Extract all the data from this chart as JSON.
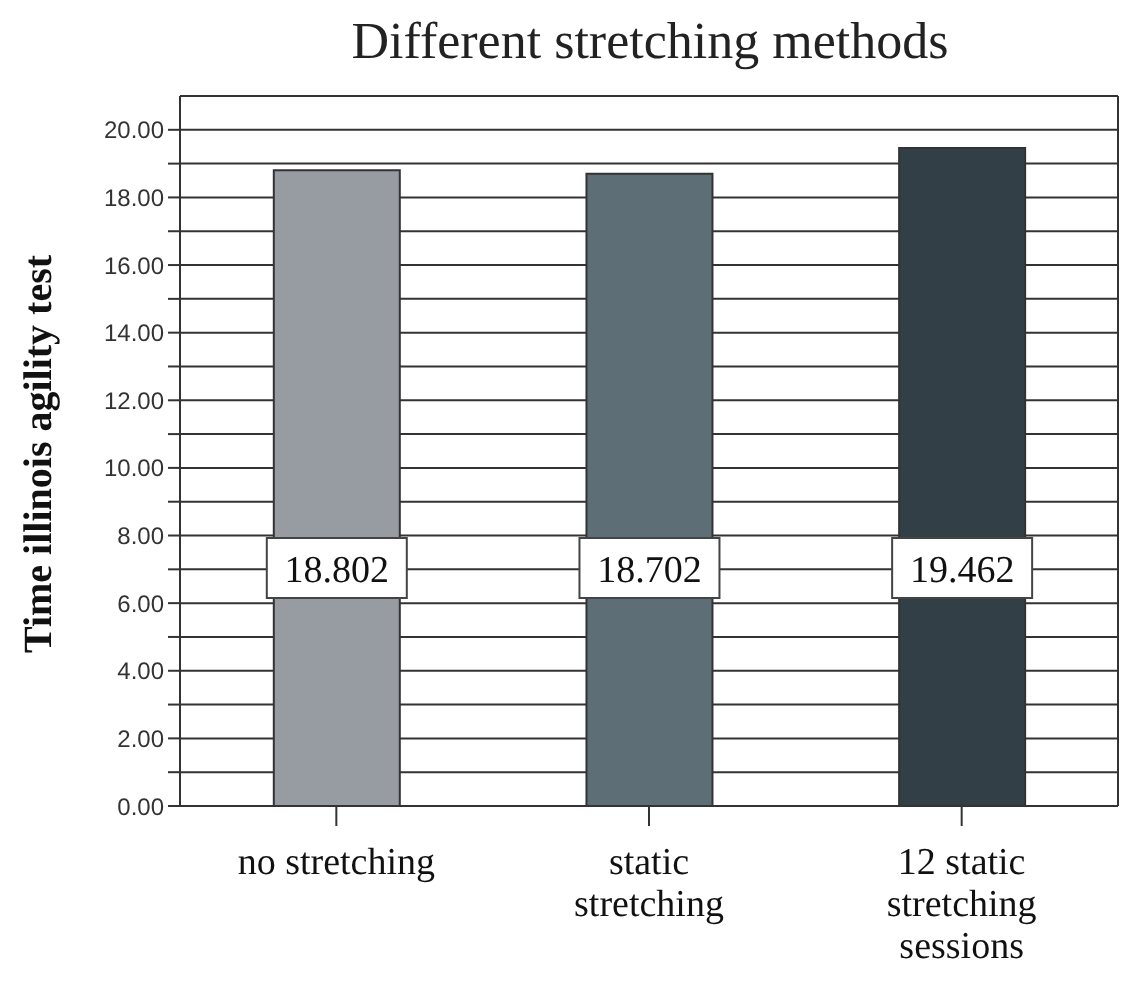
{
  "chart_data": {
    "type": "bar",
    "title": "Different stretching methods",
    "ylabel": "Time illinois agility test",
    "categories": [
      "no stretching",
      "static stretching",
      "12 static stretching sessions"
    ],
    "values": [
      18.802,
      18.702,
      19.462
    ],
    "colors": [
      "#979ca3",
      "#5e6e76",
      "#333f47"
    ],
    "ylim": [
      0,
      21
    ],
    "yticks": [
      {
        "value": 0,
        "label": "0.00"
      },
      {
        "value": 1,
        "label": null
      },
      {
        "value": 2,
        "label": "2.00"
      },
      {
        "value": 3,
        "label": null
      },
      {
        "value": 4,
        "label": "4.00"
      },
      {
        "value": 5,
        "label": null
      },
      {
        "value": 6,
        "label": "6.00"
      },
      {
        "value": 7,
        "label": null
      },
      {
        "value": 8,
        "label": "8.00"
      },
      {
        "value": 9,
        "label": null
      },
      {
        "value": 10,
        "label": "10.00"
      },
      {
        "value": 11,
        "label": null
      },
      {
        "value": 12,
        "label": "12.00"
      },
      {
        "value": 13,
        "label": null
      },
      {
        "value": 14,
        "label": "14.00"
      },
      {
        "value": 15,
        "label": null
      },
      {
        "value": 16,
        "label": "16.00"
      },
      {
        "value": 17,
        "label": null
      },
      {
        "value": 18,
        "label": "18.00"
      },
      {
        "value": 19,
        "label": null
      },
      {
        "value": 20,
        "label": "20.00"
      }
    ],
    "grid": "y",
    "data_labels": true
  }
}
